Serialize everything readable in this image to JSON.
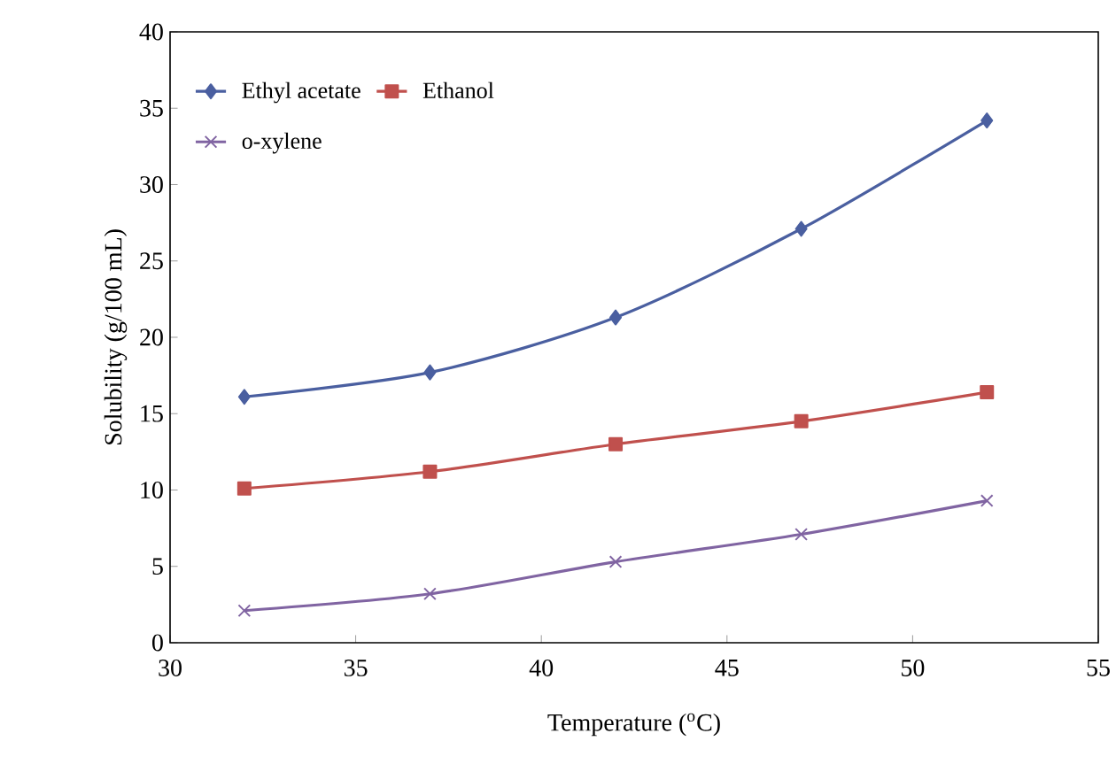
{
  "chart_data": {
    "type": "line",
    "xlabel": "Temperature ($^{o}$C)",
    "ylabel": "Solubility (g/100 mL)",
    "x": [
      32,
      37,
      42,
      47,
      52
    ],
    "series": [
      {
        "name": "Ethyl acetate",
        "color": "#4a5fa0",
        "marker": "diamond",
        "values": [
          16.1,
          17.7,
          21.3,
          27.1,
          34.2
        ]
      },
      {
        "name": "Ethanol",
        "color": "#c0504d",
        "marker": "square",
        "values": [
          10.1,
          11.2,
          13.0,
          14.5,
          16.4
        ]
      },
      {
        "name": "o-xylene",
        "color": "#8064a2",
        "marker": "cross",
        "values": [
          2.1,
          3.2,
          5.3,
          7.1,
          9.3
        ]
      }
    ],
    "xlim": [
      30,
      55
    ],
    "xticks": [
      30,
      35,
      40,
      45,
      50,
      55
    ],
    "ylim": [
      0,
      40
    ],
    "yticks": [
      0,
      5,
      10,
      15,
      20,
      25,
      30,
      35,
      40
    ],
    "grid": false,
    "legend": "top left",
    "line_style": "solid"
  }
}
